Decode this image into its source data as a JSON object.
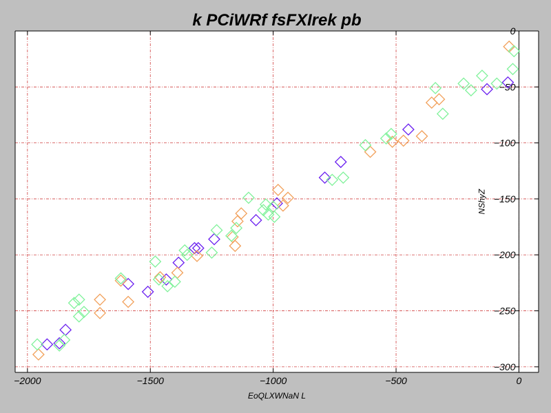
{
  "chart_data": {
    "type": "scatter",
    "title": "k PCiWRf fsFXIrek pb",
    "xlabel": "EoQLXWNaN L",
    "ylabel": "NShyZ",
    "xlim": [
      -2050,
      80
    ],
    "ylim": [
      -305,
      0
    ],
    "xticks": [
      -2000,
      -1500,
      -1000,
      -500,
      0
    ],
    "yticks": [
      0,
      -50,
      -100,
      -150,
      -200,
      -250,
      -300
    ],
    "x_tick_labels": [
      "−2000",
      "−1500",
      "−1000",
      "−500",
      "0"
    ],
    "y_tick_labels": [
      "0",
      "−50",
      "−100",
      "−150",
      "−200",
      "−250",
      "−300"
    ],
    "grid": true,
    "marker": "diamond-open",
    "series": [
      {
        "color": "#6a1ff0",
        "points": [
          [
            -1920,
            -280
          ],
          [
            -1870,
            -279
          ],
          [
            -1845,
            -267
          ],
          [
            -1590,
            -226
          ],
          [
            -1510,
            -233
          ],
          [
            -1435,
            -222
          ],
          [
            -1385,
            -207
          ],
          [
            -1305,
            -194
          ],
          [
            -1320,
            -194
          ],
          [
            -1240,
            -186
          ],
          [
            -1070,
            -169
          ],
          [
            -985,
            -154
          ],
          [
            -790,
            -131
          ],
          [
            -725,
            -117
          ],
          [
            -450,
            -88
          ],
          [
            -130,
            -52
          ],
          [
            -45,
            -46
          ]
        ]
      },
      {
        "color": "#f2a05a",
        "points": [
          [
            -1955,
            -289
          ],
          [
            -1705,
            -240
          ],
          [
            -1705,
            -252
          ],
          [
            -1590,
            -242
          ],
          [
            -1620,
            -223
          ],
          [
            -1460,
            -220
          ],
          [
            -1390,
            -216
          ],
          [
            -1310,
            -201
          ],
          [
            -1165,
            -184
          ],
          [
            -1155,
            -192
          ],
          [
            -1145,
            -170
          ],
          [
            -1130,
            -163
          ],
          [
            -980,
            -142
          ],
          [
            -960,
            -156
          ],
          [
            -940,
            -149
          ],
          [
            -605,
            -108
          ],
          [
            -515,
            -99
          ],
          [
            -470,
            -98
          ],
          [
            -395,
            -94
          ],
          [
            -355,
            -64
          ],
          [
            -325,
            -61
          ],
          [
            -40,
            -14
          ]
        ]
      },
      {
        "color": "#7ff29a",
        "points": [
          [
            -1960,
            -280
          ],
          [
            -1870,
            -281
          ],
          [
            -1850,
            -276
          ],
          [
            -1810,
            -243
          ],
          [
            -1790,
            -240
          ],
          [
            -1790,
            -255
          ],
          [
            -1770,
            -251
          ],
          [
            -1620,
            -221
          ],
          [
            -1480,
            -206
          ],
          [
            -1465,
            -222
          ],
          [
            -1430,
            -228
          ],
          [
            -1400,
            -224
          ],
          [
            -1360,
            -196
          ],
          [
            -1350,
            -200
          ],
          [
            -1250,
            -198
          ],
          [
            -1230,
            -178
          ],
          [
            -1170,
            -183
          ],
          [
            -1150,
            -176
          ],
          [
            -1100,
            -149
          ],
          [
            -1040,
            -160
          ],
          [
            -1030,
            -155
          ],
          [
            -1020,
            -164
          ],
          [
            -1000,
            -157
          ],
          [
            -995,
            -166
          ],
          [
            -760,
            -133
          ],
          [
            -715,
            -131
          ],
          [
            -625,
            -102
          ],
          [
            -540,
            -96
          ],
          [
            -520,
            -92
          ],
          [
            -340,
            -51
          ],
          [
            -310,
            -74
          ],
          [
            -225,
            -47
          ],
          [
            -195,
            -53
          ],
          [
            -150,
            -40
          ],
          [
            -90,
            -47
          ],
          [
            -25,
            -34
          ],
          [
            -20,
            -18
          ]
        ]
      }
    ]
  }
}
